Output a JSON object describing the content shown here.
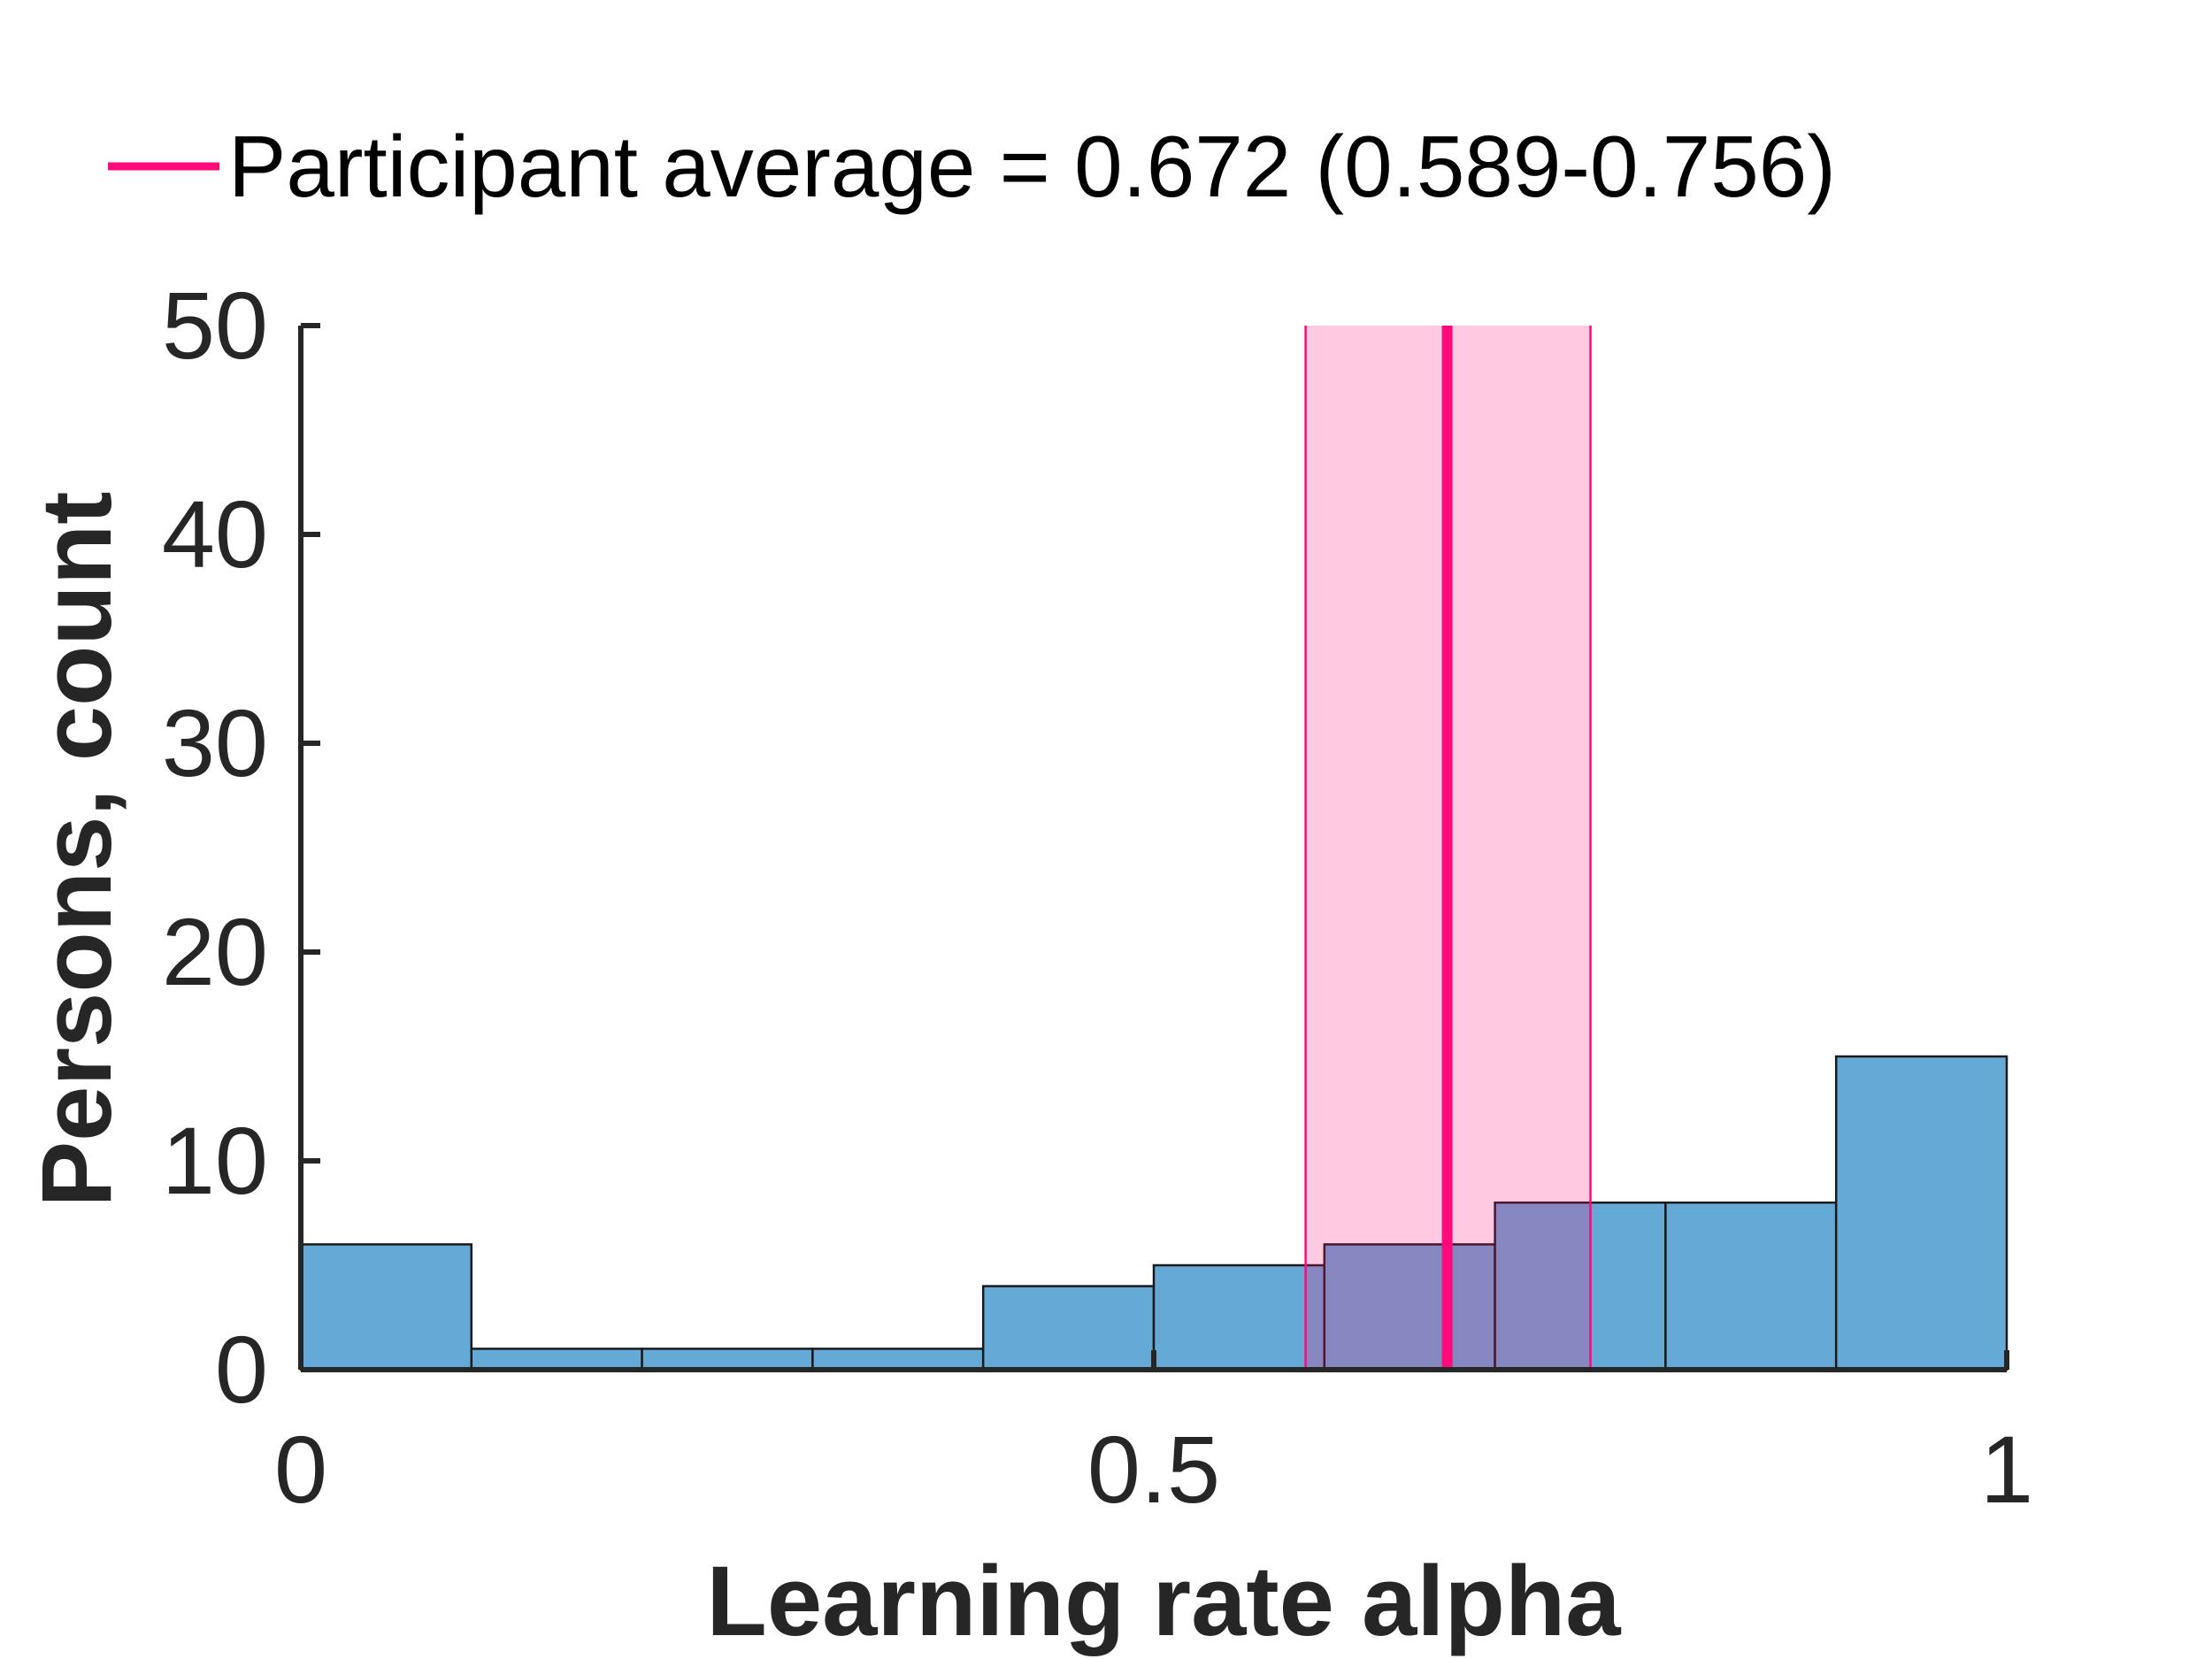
{
  "chart_data": {
    "type": "bar",
    "subtype": "histogram",
    "xlabel": "Learning rate alpha",
    "ylabel": "Persons, count",
    "xlim": [
      0,
      1
    ],
    "ylim": [
      0,
      50
    ],
    "xticks": [
      0,
      0.5,
      1
    ],
    "xtick_labels": [
      "0",
      "0.5",
      "1"
    ],
    "yticks": [
      0,
      10,
      20,
      30,
      40,
      50
    ],
    "ytick_labels": [
      "0",
      "10",
      "20",
      "30",
      "40",
      "50"
    ],
    "grid": false,
    "legend_position": "top",
    "bins": [
      {
        "x0": 0.0,
        "x1": 0.1,
        "count": 6
      },
      {
        "x0": 0.1,
        "x1": 0.2,
        "count": 1
      },
      {
        "x0": 0.2,
        "x1": 0.3,
        "count": 1
      },
      {
        "x0": 0.3,
        "x1": 0.4,
        "count": 1
      },
      {
        "x0": 0.4,
        "x1": 0.5,
        "count": 4
      },
      {
        "x0": 0.5,
        "x1": 0.6,
        "count": 5
      },
      {
        "x0": 0.6,
        "x1": 0.7,
        "count": 6
      },
      {
        "x0": 0.7,
        "x1": 0.8,
        "count": 8
      },
      {
        "x0": 0.8,
        "x1": 0.9,
        "count": 8
      },
      {
        "x0": 0.9,
        "x1": 1.0,
        "count": 15
      }
    ],
    "average": {
      "value": 0.672,
      "ci_low": 0.589,
      "ci_high": 0.756,
      "legend_label": "Participant average = 0.672 (0.589-0.756)"
    },
    "colors": {
      "bar_fill": "#65a9d7",
      "bar_stroke": "#1a1a1a",
      "average_line": "#ff0a78",
      "ci_band": "#fec8de",
      "axis": "#262626"
    }
  }
}
